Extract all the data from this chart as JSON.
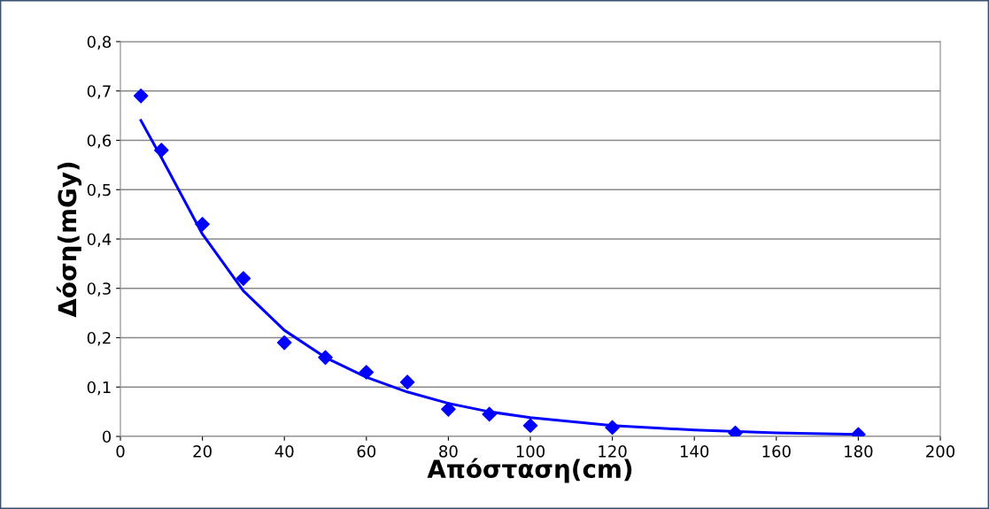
{
  "chart_data": {
    "type": "scatter",
    "xlabel": "Απόσταση(cm)",
    "ylabel": "Δόση(mGy)",
    "xlim": [
      0,
      200
    ],
    "xticks": [
      0,
      20,
      40,
      60,
      80,
      100,
      120,
      140,
      160,
      180,
      200
    ],
    "ylim": [
      0,
      0.8
    ],
    "yticks": [
      {
        "value": 0,
        "label": "0"
      },
      {
        "value": 0.1,
        "label": "0,1"
      },
      {
        "value": 0.2,
        "label": "0,2"
      },
      {
        "value": 0.3,
        "label": "0,3"
      },
      {
        "value": 0.4,
        "label": "0,4"
      },
      {
        "value": 0.5,
        "label": "0,5"
      },
      {
        "value": 0.6,
        "label": "0,6"
      },
      {
        "value": 0.7,
        "label": "0,7"
      },
      {
        "value": 0.8,
        "label": "0,8"
      }
    ],
    "grid": "y",
    "legend": false,
    "series": [
      {
        "marker": "diamond",
        "color": "#0000ff",
        "x": [
          5,
          10,
          20,
          30,
          40,
          50,
          60,
          70,
          80,
          90,
          100,
          120,
          150,
          180
        ],
        "values": [
          0.69,
          0.58,
          0.43,
          0.32,
          0.19,
          0.16,
          0.13,
          0.11,
          0.055,
          0.045,
          0.022,
          0.018,
          0.007,
          0.004
        ]
      },
      {
        "type": "line",
        "marker": "none",
        "line_style": "solid",
        "color": "#0000ff",
        "x": [
          5,
          10,
          20,
          30,
          40,
          50,
          60,
          70,
          80,
          90,
          100,
          120,
          140,
          160,
          180
        ],
        "values": [
          0.64,
          0.565,
          0.41,
          0.295,
          0.215,
          0.16,
          0.12,
          0.09,
          0.067,
          0.05,
          0.038,
          0.022,
          0.013,
          0.007,
          0.004
        ]
      }
    ]
  }
}
